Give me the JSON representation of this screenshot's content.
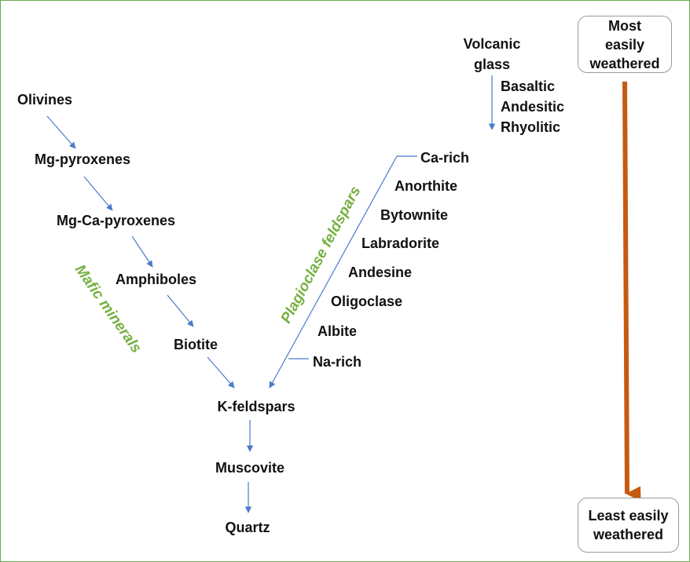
{
  "mafic_series": {
    "group_label": "Mafic minerals",
    "items": [
      "Olivines",
      "Mg-pyroxenes",
      "Mg-Ca-pyroxenes",
      "Amphiboles",
      "Biotite"
    ]
  },
  "plagioclase_series": {
    "group_label": "Plagioclase feldspars",
    "items": [
      "Ca-rich",
      "Anorthite",
      "Bytownite",
      "Labradorite",
      "Andesine",
      "Oligoclase",
      "Albite",
      "Na-rich"
    ]
  },
  "common_series": {
    "items": [
      "K-feldspars",
      "Muscovite",
      "Quartz"
    ]
  },
  "volcanic_glass": {
    "title_lines": [
      "Volcanic",
      "glass"
    ],
    "types": [
      "Basaltic",
      "Andesitic",
      "Rhyolitic"
    ]
  },
  "weathering_scale": {
    "top_lines": [
      "Most",
      "easily",
      "weathered"
    ],
    "bottom_lines": [
      "Least easily",
      "weathered"
    ]
  },
  "colors": {
    "frame": "#6aa84f",
    "arrow": "#4a7cc9",
    "group_label": "#76b041",
    "scale_arrow": "#c55a11",
    "box_border": "#9a9a9a"
  }
}
